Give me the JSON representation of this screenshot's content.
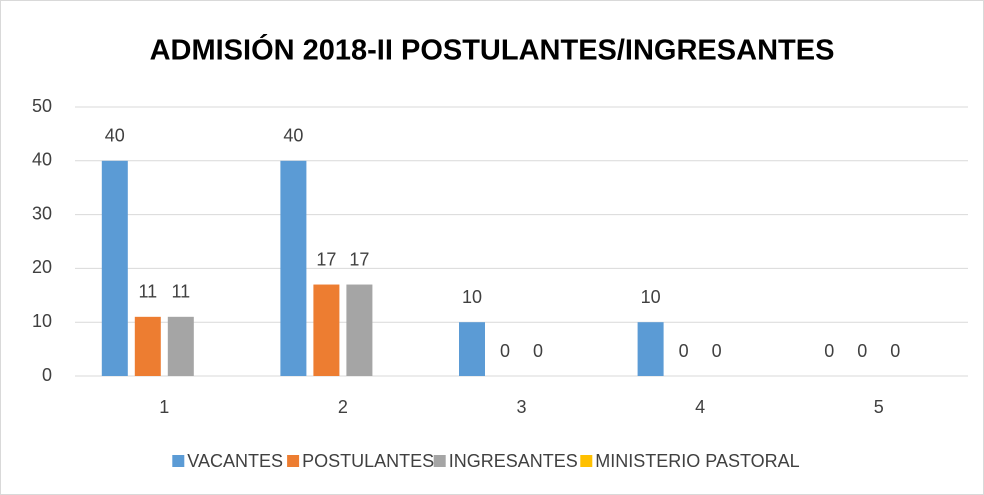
{
  "chart_data": {
    "type": "bar",
    "title": "ADMISIÓN 2018-II POSTULANTES/INGRESANTES",
    "categories": [
      "1",
      "2",
      "3",
      "4",
      "5"
    ],
    "series": [
      {
        "name": "VACANTES",
        "color": "#5b9bd5",
        "values": [
          40,
          40,
          10,
          10,
          0
        ]
      },
      {
        "name": "POSTULANTES",
        "color": "#ed7d31",
        "values": [
          11,
          17,
          0,
          0,
          0
        ]
      },
      {
        "name": "INGRESANTES",
        "color": "#a5a5a5",
        "values": [
          11,
          17,
          0,
          0,
          0
        ]
      },
      {
        "name": "MINISTERIO PASTORAL",
        "color": "#ffc000",
        "values": [
          null,
          null,
          null,
          null,
          null
        ]
      }
    ],
    "ylim": [
      0,
      50
    ],
    "yticks": [
      0,
      10,
      20,
      30,
      40,
      50
    ],
    "grid": true,
    "legend": "bottom"
  }
}
